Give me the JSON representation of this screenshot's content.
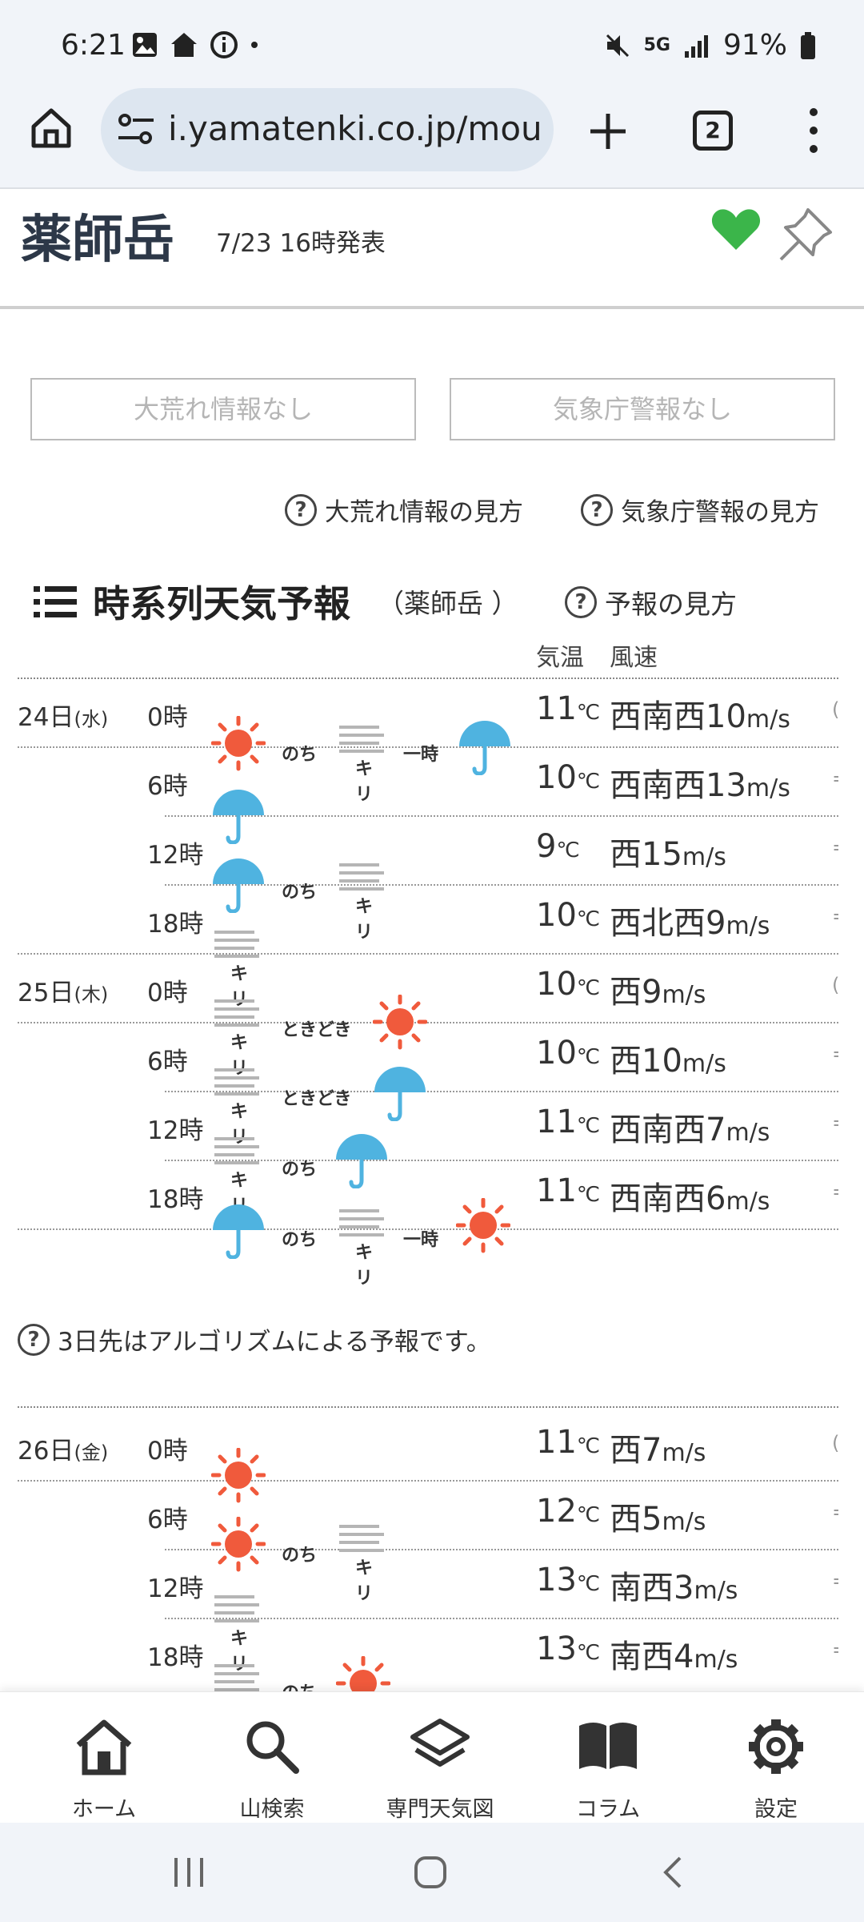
{
  "status_bar": {
    "time": "6:21",
    "network": "5G",
    "battery": "91%"
  },
  "browser": {
    "url": "i.yamatenki.co.jp/mou",
    "tab_count": "2"
  },
  "header": {
    "mountain": "薬師岳",
    "issued": "7/23 16時発表",
    "favorited": true
  },
  "alerts": {
    "storm": "大荒れ情報なし",
    "jma": "気象庁警報なし"
  },
  "help_links": {
    "storm_help": "大荒れ情報の見方",
    "jma_help": "気象庁警報の見方"
  },
  "section": {
    "title": "時系列天気予報",
    "mountain_paren": "（薬師岳 ）",
    "help": "予報の見方"
  },
  "columns": {
    "temp": "気温",
    "wind": "風速"
  },
  "forecast": [
    {
      "day": "24日",
      "weekday": "(水)",
      "hour": "0時",
      "temp": "11",
      "wind_dir": "西南西",
      "wind_speed": "10"
    },
    {
      "day": "",
      "weekday": "",
      "hour": "6時",
      "temp": "10",
      "wind_dir": "西南西",
      "wind_speed": "13"
    },
    {
      "day": "",
      "weekday": "",
      "hour": "12時",
      "temp": "9",
      "wind_dir": "西",
      "wind_speed": "15"
    },
    {
      "day": "",
      "weekday": "",
      "hour": "18時",
      "temp": "10",
      "wind_dir": "西北西",
      "wind_speed": "9"
    },
    {
      "day": "25日",
      "weekday": "(木)",
      "hour": "0時",
      "temp": "10",
      "wind_dir": "西",
      "wind_speed": "9"
    },
    {
      "day": "",
      "weekday": "",
      "hour": "6時",
      "temp": "10",
      "wind_dir": "西",
      "wind_speed": "10"
    },
    {
      "day": "",
      "weekday": "",
      "hour": "12時",
      "temp": "11",
      "wind_dir": "西南西",
      "wind_speed": "7"
    },
    {
      "day": "",
      "weekday": "",
      "hour": "18時",
      "temp": "11",
      "wind_dir": "西南西",
      "wind_speed": "6"
    },
    {
      "day": "26日",
      "weekday": "(金)",
      "hour": "0時",
      "temp": "11",
      "wind_dir": "西",
      "wind_speed": "7"
    },
    {
      "day": "",
      "weekday": "",
      "hour": "6時",
      "temp": "12",
      "wind_dir": "西",
      "wind_speed": "5"
    },
    {
      "day": "",
      "weekday": "",
      "hour": "12時",
      "temp": "13",
      "wind_dir": "南西",
      "wind_speed": "3"
    },
    {
      "day": "",
      "weekday": "",
      "hour": "18時",
      "temp": "13",
      "wind_dir": "南西",
      "wind_speed": "4"
    }
  ],
  "units": {
    "temp": "℃",
    "wind": "m/s"
  },
  "weather_words": {
    "later": "のち",
    "temporarily": "一時",
    "occasionally": "ときどき",
    "fog": "キリ"
  },
  "algo_note": "3日先はアルゴリズムによる予報です。",
  "bottom_nav": [
    {
      "label": "ホーム",
      "icon": "home-icon"
    },
    {
      "label": "山検索",
      "icon": "search-icon"
    },
    {
      "label": "専門天気図",
      "icon": "layers-icon"
    },
    {
      "label": "コラム",
      "icon": "book-icon"
    },
    {
      "label": "設定",
      "icon": "gear-icon"
    }
  ],
  "colors": {
    "sun": "#f05a3c",
    "rain": "#4fb3e0",
    "fog": "#b5b5b5",
    "heart": "#3bb54a",
    "title": "#2d3848"
  }
}
